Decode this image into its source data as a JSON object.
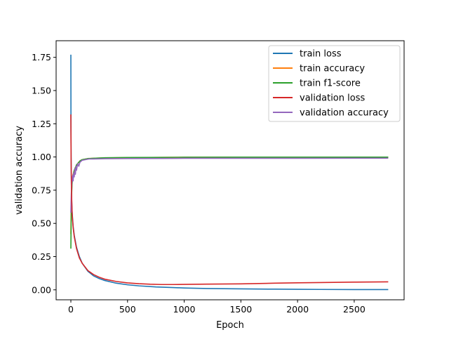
{
  "chart_data": {
    "type": "line",
    "title": "",
    "xlabel": "Epoch",
    "ylabel": "validation accuracy",
    "xlim": [
      -130,
      2940
    ],
    "ylim": [
      -0.075,
      1.875
    ],
    "xticks": [
      0,
      500,
      1000,
      1500,
      2000,
      2500
    ],
    "xtick_labels": [
      "0",
      "500",
      "1000",
      "1500",
      "2000",
      "2500"
    ],
    "yticks": [
      0.0,
      0.25,
      0.5,
      0.75,
      1.0,
      1.25,
      1.5,
      1.75
    ],
    "ytick_labels": [
      "0.00",
      "0.25",
      "0.50",
      "0.75",
      "1.00",
      "1.25",
      "1.50",
      "1.75"
    ],
    "grid": false,
    "legend_position": "top-right",
    "series": [
      {
        "name": "train loss",
        "color": "#1f77b4",
        "x": [
          0,
          1,
          3,
          6,
          10,
          20,
          30,
          50,
          75,
          100,
          150,
          200,
          250,
          300,
          400,
          500,
          600,
          750,
          900,
          1000,
          1200,
          1500,
          1800,
          2000,
          2200,
          2500,
          2800
        ],
        "y": [
          1.77,
          1.2,
          0.9,
          0.72,
          0.6,
          0.48,
          0.41,
          0.32,
          0.25,
          0.2,
          0.14,
          0.105,
          0.085,
          0.07,
          0.05,
          0.038,
          0.03,
          0.022,
          0.017,
          0.014,
          0.01,
          0.007,
          0.005,
          0.004,
          0.003,
          0.002,
          0.002
        ]
      },
      {
        "name": "train accuracy",
        "color": "#ff7f0e",
        "x": [
          0,
          3,
          6,
          10,
          15,
          20,
          30,
          40,
          50,
          60,
          80,
          100,
          150,
          200,
          300,
          500,
          800,
          1000,
          1500,
          2000,
          2500,
          2800
        ],
        "y": [
          0.42,
          0.62,
          0.72,
          0.8,
          0.85,
          0.87,
          0.9,
          0.92,
          0.94,
          0.95,
          0.97,
          0.98,
          0.988,
          0.99,
          0.993,
          0.995,
          0.997,
          0.998,
          0.999,
          0.999,
          0.999,
          0.999
        ]
      },
      {
        "name": "train f1-score",
        "color": "#2ca02c",
        "x": [
          0,
          3,
          6,
          10,
          15,
          20,
          30,
          40,
          50,
          60,
          80,
          100,
          150,
          200,
          300,
          500,
          800,
          1000,
          1500,
          2000,
          2500,
          2800
        ],
        "y": [
          0.31,
          0.55,
          0.7,
          0.79,
          0.84,
          0.86,
          0.9,
          0.92,
          0.94,
          0.95,
          0.97,
          0.98,
          0.988,
          0.99,
          0.994,
          0.996,
          0.997,
          0.998,
          0.999,
          0.999,
          0.999,
          0.999
        ]
      },
      {
        "name": "validation loss",
        "color": "#d62728",
        "x": [
          0,
          2,
          5,
          8,
          12,
          20,
          30,
          50,
          75,
          100,
          150,
          200,
          250,
          300,
          400,
          500,
          600,
          700,
          800,
          900,
          1000,
          1200,
          1500,
          1800,
          2000,
          2200,
          2500,
          2800
        ],
        "y": [
          1.32,
          1.0,
          0.78,
          0.66,
          0.56,
          0.47,
          0.4,
          0.31,
          0.24,
          0.2,
          0.145,
          0.115,
          0.095,
          0.08,
          0.063,
          0.052,
          0.046,
          0.042,
          0.04,
          0.04,
          0.041,
          0.043,
          0.045,
          0.05,
          0.053,
          0.055,
          0.058,
          0.06
        ]
      },
      {
        "name": "validation accuracy",
        "color": "#9467bd",
        "x": [
          0,
          4,
          8,
          12,
          16,
          20,
          25,
          30,
          35,
          40,
          45,
          50,
          60,
          70,
          80,
          100,
          130,
          160,
          200,
          300,
          500,
          800,
          1000,
          1500,
          2000,
          2500,
          2800
        ],
        "y": [
          0.58,
          0.72,
          0.8,
          0.83,
          0.86,
          0.82,
          0.88,
          0.85,
          0.91,
          0.87,
          0.93,
          0.9,
          0.95,
          0.93,
          0.96,
          0.975,
          0.98,
          0.985,
          0.985,
          0.987,
          0.988,
          0.989,
          0.99,
          0.99,
          0.99,
          0.991,
          0.991
        ]
      }
    ]
  }
}
